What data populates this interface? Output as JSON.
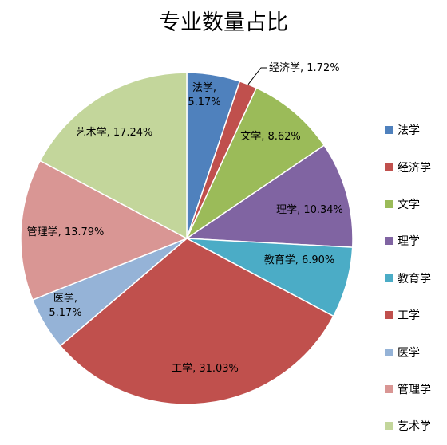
{
  "chart_data": {
    "type": "pie",
    "title": "专业数量占比",
    "slices": [
      {
        "name": "法学",
        "value": 5.17,
        "label": "法学,\n5.17%",
        "color": "#4f81bd"
      },
      {
        "name": "经济学",
        "value": 1.72,
        "label": "经济学, 1.72%",
        "color": "#c0504d"
      },
      {
        "name": "文学",
        "value": 8.62,
        "label": "文学, 8.62%",
        "color": "#9bbb59"
      },
      {
        "name": "理学",
        "value": 10.34,
        "label": "理学, 10.34%",
        "color": "#8064a2"
      },
      {
        "name": "教育学",
        "value": 6.9,
        "label": "教育学, 6.90%",
        "color": "#4bacc6"
      },
      {
        "name": "工学",
        "value": 31.03,
        "label": "工学, 31.03%",
        "color": "#c0504d"
      },
      {
        "name": "医学",
        "value": 5.17,
        "label": "医学,\n5.17%",
        "color": "#95b3d7"
      },
      {
        "name": "管理学",
        "value": 13.79,
        "label": "管理学, 13.79%",
        "color": "#d99694"
      },
      {
        "name": "艺术学",
        "value": 17.24,
        "label": "艺术学, 17.24%",
        "color": "#c3d69b"
      }
    ],
    "legend_position": "right"
  }
}
